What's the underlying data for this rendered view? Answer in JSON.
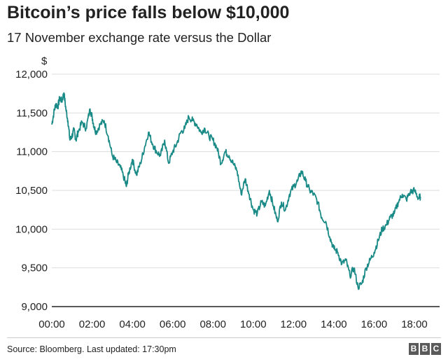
{
  "chart_data": {
    "type": "line",
    "title": "Bitcoin’s price falls below $10,000",
    "subtitle": "17 November exchange rate versus the Dollar",
    "ylabel": "$",
    "xlabel": "",
    "ylim": [
      9000,
      12000
    ],
    "xlim": [
      0,
      18.5
    ],
    "yticks": [
      9000,
      9500,
      10000,
      10500,
      11000,
      11500,
      12000
    ],
    "ytick_labels": [
      "9,000",
      "9,500",
      "10,000",
      "10,500",
      "11,000",
      "11,500",
      "12,000"
    ],
    "xticks": [
      0,
      2,
      4,
      6,
      8,
      10,
      12,
      14,
      16,
      18
    ],
    "xtick_labels": [
      "00:00",
      "02:00",
      "04:00",
      "06:00",
      "08:00",
      "10:00",
      "12:00",
      "14:00",
      "16:00",
      "18:00"
    ],
    "grid": true,
    "series": [
      {
        "color": "#1a8a87",
        "x": [
          0,
          0.1,
          0.2,
          0.3,
          0.4,
          0.5,
          0.6,
          0.7,
          0.8,
          0.9,
          1.0,
          1.1,
          1.2,
          1.3,
          1.5,
          1.7,
          1.9,
          2.0,
          2.1,
          2.2,
          2.4,
          2.6,
          2.8,
          3.0,
          3.2,
          3.4,
          3.6,
          3.7,
          3.8,
          4.0,
          4.2,
          4.4,
          4.6,
          4.8,
          5.0,
          5.2,
          5.4,
          5.6,
          5.8,
          6.0,
          6.2,
          6.4,
          6.6,
          6.8,
          7.0,
          7.2,
          7.4,
          7.6,
          7.8,
          8.0,
          8.2,
          8.4,
          8.6,
          8.8,
          9.0,
          9.2,
          9.4,
          9.6,
          9.8,
          10.0,
          10.2,
          10.4,
          10.6,
          10.8,
          11.0,
          11.2,
          11.4,
          11.6,
          11.8,
          12.0,
          12.2,
          12.4,
          12.6,
          12.8,
          13.0,
          13.2,
          13.4,
          13.6,
          13.8,
          14.0,
          14.2,
          14.4,
          14.6,
          14.8,
          15.0,
          15.2,
          15.4,
          15.6,
          15.8,
          16.0,
          16.2,
          16.4,
          16.6,
          16.8,
          17.0,
          17.2,
          17.4,
          17.6,
          17.8,
          18.0,
          18.2,
          18.3
        ],
        "y": [
          11350,
          11500,
          11620,
          11580,
          11700,
          11650,
          11760,
          11550,
          11400,
          11150,
          11200,
          11280,
          11150,
          11250,
          11380,
          11300,
          11550,
          11450,
          11320,
          11250,
          11350,
          11400,
          11200,
          10950,
          10870,
          10800,
          10650,
          10550,
          10700,
          10900,
          10700,
          10850,
          11050,
          11250,
          11100,
          11000,
          10950,
          11150,
          10850,
          11000,
          11100,
          11250,
          11300,
          11450,
          11400,
          11350,
          11250,
          11300,
          11200,
          11150,
          11050,
          10850,
          11000,
          10950,
          10850,
          10750,
          10450,
          10650,
          10450,
          10250,
          10200,
          10350,
          10300,
          10500,
          10300,
          10100,
          10350,
          10250,
          10450,
          10550,
          10620,
          10750,
          10620,
          10500,
          10450,
          10350,
          10150,
          10100,
          9900,
          9750,
          9700,
          9550,
          9600,
          9400,
          9500,
          9250,
          9300,
          9500,
          9600,
          9700,
          9850,
          10000,
          10050,
          10150,
          10200,
          10350,
          10450,
          10380,
          10480,
          10500,
          10400,
          10420
        ]
      }
    ]
  },
  "footer": {
    "source": "Source: Bloomberg. Last updated: 17:30pm",
    "logo_letters": [
      "B",
      "B",
      "C"
    ]
  }
}
